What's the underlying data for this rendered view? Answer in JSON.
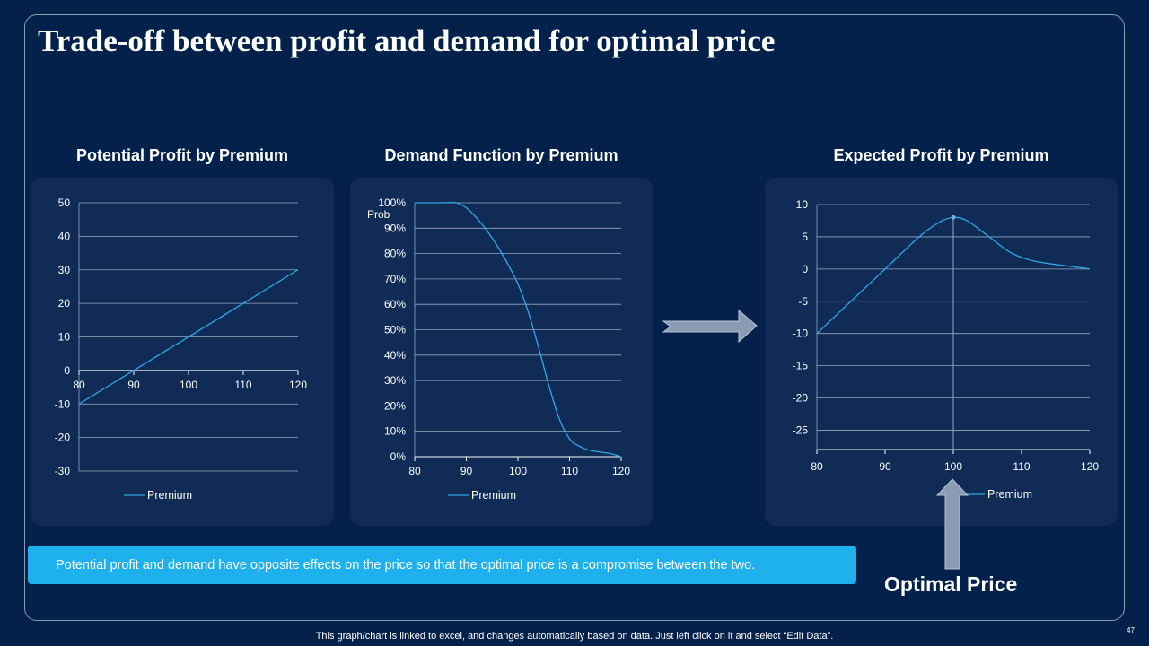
{
  "slide": {
    "title": "Trade-off between profit and demand for optimal price",
    "callout": "Potential profit and demand have opposite effects on the price so that the optimal price is a compromise between  the two.",
    "optimal_label": "Optimal Price",
    "footer": "This graph/chart is linked to excel, and changes automatically based on data. Just left click on it and select “Edit Data”.",
    "page_number": "47"
  },
  "colors": {
    "background": "#03214a",
    "panel": "#0f2b56",
    "line": "#2fa8e6",
    "callout": "#1fb0ee",
    "arrow": "#8a9cb4"
  },
  "chart_data": [
    {
      "type": "line",
      "title": "Potential Profit by Premium",
      "x": [
        80,
        120
      ],
      "series": [
        {
          "name": "Premium",
          "values": [
            -10,
            30
          ]
        }
      ],
      "xticks": [
        80,
        90,
        100,
        110,
        120
      ],
      "xtick_labels": [
        "80",
        "90",
        "100",
        "110",
        "120"
      ],
      "yticks": [
        -30,
        -20,
        -10,
        0,
        10,
        20,
        30,
        40,
        50
      ],
      "ytick_labels": [
        "-30",
        "-20",
        "-10",
        "0",
        "10",
        "20",
        "30",
        "40",
        "50"
      ],
      "xlim": [
        80,
        120
      ],
      "ylim": [
        -30,
        50
      ],
      "xlabel": "",
      "ylabel": "",
      "legend": "bottom",
      "grid": true
    },
    {
      "type": "line",
      "title": "Demand Function by Premium",
      "x": [
        80,
        85,
        88,
        90,
        92,
        94,
        96,
        98,
        100,
        102,
        104,
        106,
        108,
        110,
        112,
        114,
        116,
        118,
        120
      ],
      "series": [
        {
          "name": "Premium",
          "values": [
            100,
            100,
            100,
            98,
            94,
            89,
            83,
            76,
            68,
            57,
            43,
            28,
            15,
            7,
            4,
            2.5,
            1.8,
            1.2,
            0
          ]
        }
      ],
      "xticks": [
        80,
        90,
        100,
        110,
        120
      ],
      "xtick_labels": [
        "80",
        "90",
        "100",
        "110",
        "120"
      ],
      "yticks": [
        0,
        10,
        20,
        30,
        40,
        50,
        60,
        70,
        80,
        90,
        100
      ],
      "ytick_labels": [
        "0%",
        "10%",
        "20%",
        "30%",
        "40%",
        "50%",
        "60%",
        "70%",
        "80%",
        "90%",
        "100%"
      ],
      "xlim": [
        80,
        120
      ],
      "ylim": [
        0,
        100
      ],
      "xlabel": "",
      "ylabel": "Prob",
      "legend": "bottom",
      "grid": true
    },
    {
      "type": "line",
      "title": "Expected Profit by Premium",
      "x": [
        80,
        85,
        90,
        95,
        98,
        100,
        102,
        105,
        108,
        110,
        112,
        115,
        118,
        120
      ],
      "series": [
        {
          "name": "Premium",
          "values": [
            -10,
            -5,
            0,
            5,
            7.3,
            8,
            7.5,
            5.2,
            2.8,
            1.8,
            1.2,
            0.7,
            0.3,
            0
          ]
        }
      ],
      "highlight": {
        "x": 100,
        "y": 8
      },
      "xticks": [
        80,
        90,
        100,
        110,
        120
      ],
      "xtick_labels": [
        "80",
        "90",
        "100",
        "110",
        "120"
      ],
      "yticks": [
        -25,
        -20,
        -15,
        -10,
        -5,
        0,
        5,
        10
      ],
      "ytick_labels": [
        "-25",
        "-20",
        "-15",
        "-10",
        "-5",
        "0",
        "5",
        "10"
      ],
      "xlim": [
        80,
        120
      ],
      "ylim": [
        -28,
        10
      ],
      "xlabel": "",
      "ylabel": "",
      "legend": "right-bottom",
      "grid": true
    }
  ]
}
